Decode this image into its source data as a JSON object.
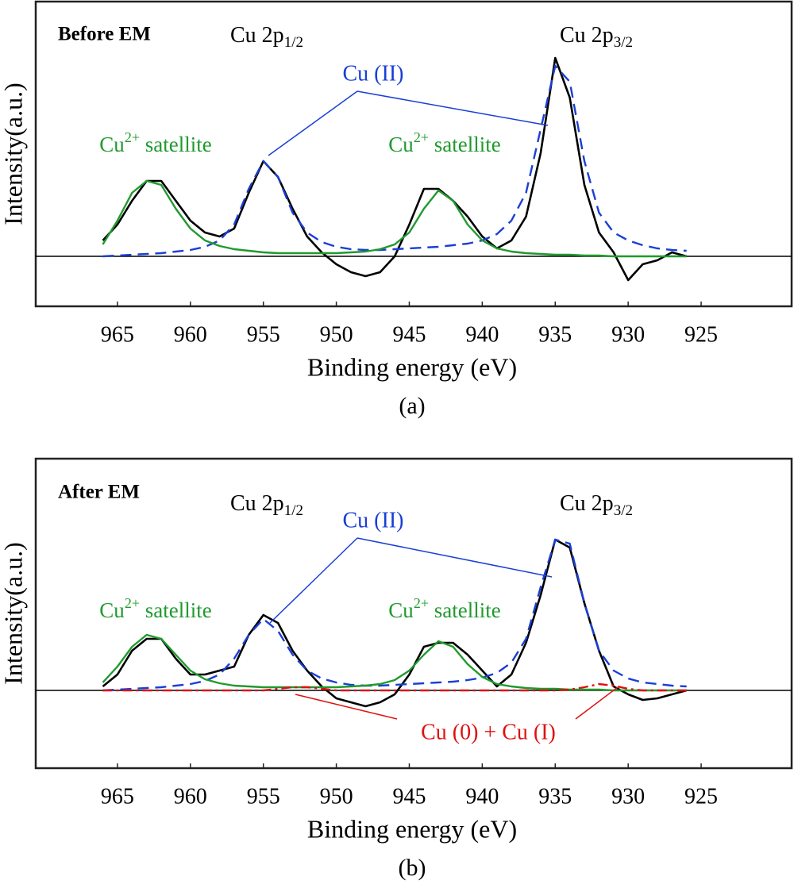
{
  "chart_data": [
    {
      "type": "line",
      "title": "Before EM",
      "caption": "(a)",
      "x_label": "Binding energy (eV)",
      "y_label": "Intensity(a.u.)",
      "x": [
        966,
        965,
        964,
        963,
        962,
        961,
        960,
        959,
        958,
        957,
        956,
        955,
        954,
        953,
        952,
        951,
        950,
        949,
        948,
        947,
        946,
        945,
        944,
        943,
        942,
        941,
        940,
        939,
        938,
        937,
        936,
        935,
        934,
        933,
        932,
        931,
        930,
        929,
        928,
        927,
        926
      ],
      "xlim": [
        970.6,
        918.8
      ],
      "xticks": [
        965,
        960,
        955,
        950,
        945,
        940,
        935,
        930,
        925
      ],
      "ylim": [
        -0.63,
        3.21
      ],
      "baseline": 0,
      "series": [
        {
          "color": "#000000",
          "dash": "solid",
          "values": [
            0.2,
            0.4,
            0.7,
            0.95,
            0.95,
            0.7,
            0.45,
            0.3,
            0.25,
            0.35,
            0.8,
            1.2,
            1.0,
            0.6,
            0.25,
            0.05,
            -0.1,
            -0.2,
            -0.25,
            -0.2,
            0.0,
            0.4,
            0.85,
            0.85,
            0.7,
            0.5,
            0.25,
            0.1,
            0.2,
            0.5,
            1.3,
            2.5,
            2.0,
            0.9,
            0.3,
            0.05,
            -0.3,
            -0.1,
            -0.05,
            0.05,
            0.0
          ]
        },
        {
          "color": "#1a3fd6",
          "dash": "dashed",
          "values": [
            0.0,
            0.01,
            0.02,
            0.03,
            0.04,
            0.06,
            0.08,
            0.12,
            0.2,
            0.4,
            0.85,
            1.2,
            1.0,
            0.55,
            0.3,
            0.18,
            0.12,
            0.09,
            0.08,
            0.08,
            0.09,
            0.1,
            0.11,
            0.12,
            0.14,
            0.16,
            0.2,
            0.28,
            0.45,
            0.8,
            1.6,
            2.4,
            2.2,
            1.2,
            0.55,
            0.3,
            0.2,
            0.14,
            0.1,
            0.08,
            0.07
          ]
        },
        {
          "color": "#1f9a2e",
          "dash": "solid",
          "values": [
            0.15,
            0.45,
            0.8,
            0.95,
            0.9,
            0.6,
            0.35,
            0.2,
            0.13,
            0.09,
            0.07,
            0.05,
            0.04,
            0.04,
            0.04,
            0.04,
            0.04,
            0.05,
            0.06,
            0.09,
            0.15,
            0.3,
            0.6,
            0.83,
            0.7,
            0.4,
            0.2,
            0.1,
            0.06,
            0.04,
            0.03,
            0.02,
            0.02,
            0.01,
            0.01,
            0.0,
            0.0,
            0.0,
            0.0,
            0.0,
            0.0
          ]
        }
      ],
      "peak_labels": [
        {
          "base": "Cu 2p",
          "sub": "1/2"
        },
        {
          "base": "Cu 2p",
          "sub": "3/2"
        }
      ],
      "cu2_label": "Cu (II)",
      "satellite_labels": [
        {
          "base": "Cu",
          "sup": "2+",
          "rest": " satellite"
        },
        {
          "base": "Cu",
          "sup": "2+",
          "rest": " satellite"
        }
      ]
    },
    {
      "type": "line",
      "title": "After EM",
      "caption": "(b)",
      "x_label": "Binding energy (eV)",
      "y_label": "Intensity(a.u.)",
      "x": [
        966,
        965,
        964,
        963,
        962,
        961,
        960,
        959,
        958,
        957,
        956,
        955,
        954,
        953,
        952,
        951,
        950,
        949,
        948,
        947,
        946,
        945,
        944,
        943,
        942,
        941,
        940,
        939,
        938,
        937,
        936,
        935,
        934,
        933,
        932,
        931,
        930,
        929,
        928,
        927,
        926
      ],
      "xlim": [
        970.6,
        918.8
      ],
      "xticks": [
        965,
        960,
        955,
        950,
        945,
        940,
        935,
        930,
        925
      ],
      "ylim": [
        -0.98,
        2.92
      ],
      "baseline": 0,
      "series": [
        {
          "color": "#000000",
          "dash": "solid",
          "values": [
            0.05,
            0.2,
            0.5,
            0.65,
            0.65,
            0.4,
            0.2,
            0.2,
            0.25,
            0.3,
            0.7,
            0.95,
            0.85,
            0.5,
            0.25,
            0.05,
            -0.1,
            -0.15,
            -0.2,
            -0.15,
            -0.05,
            0.2,
            0.55,
            0.6,
            0.6,
            0.45,
            0.25,
            0.05,
            0.2,
            0.6,
            1.2,
            1.9,
            1.8,
            1.1,
            0.5,
            0.05,
            -0.05,
            -0.12,
            -0.1,
            -0.05,
            0.0
          ]
        },
        {
          "color": "#1a3fd6",
          "dash": "dashed",
          "values": [
            0.0,
            0.01,
            0.02,
            0.03,
            0.04,
            0.06,
            0.08,
            0.12,
            0.2,
            0.4,
            0.7,
            0.9,
            0.75,
            0.45,
            0.25,
            0.15,
            0.1,
            0.07,
            0.06,
            0.06,
            0.07,
            0.08,
            0.09,
            0.1,
            0.11,
            0.13,
            0.16,
            0.22,
            0.35,
            0.65,
            1.3,
            1.9,
            1.85,
            1.1,
            0.5,
            0.25,
            0.15,
            0.1,
            0.08,
            0.06,
            0.05
          ]
        },
        {
          "color": "#1f9a2e",
          "dash": "solid",
          "values": [
            0.1,
            0.3,
            0.55,
            0.7,
            0.65,
            0.45,
            0.25,
            0.14,
            0.09,
            0.06,
            0.05,
            0.04,
            0.04,
            0.04,
            0.04,
            0.04,
            0.04,
            0.05,
            0.06,
            0.08,
            0.13,
            0.25,
            0.45,
            0.62,
            0.55,
            0.33,
            0.17,
            0.08,
            0.05,
            0.03,
            0.02,
            0.02,
            0.01,
            0.01,
            0.01,
            0.0,
            0.0,
            0.0,
            0.0,
            0.0,
            0.0
          ]
        },
        {
          "color": "#e01010",
          "dash": "dashdot",
          "values": [
            0,
            0,
            0,
            0,
            0,
            0,
            0,
            0,
            0,
            0,
            0,
            0,
            0.02,
            0.04,
            0.04,
            0.02,
            0,
            0,
            0,
            0,
            0,
            0,
            0,
            0,
            0,
            0,
            0,
            0,
            0,
            0,
            0,
            0,
            0.01,
            0.04,
            0.08,
            0.06,
            0.02,
            0,
            0,
            0,
            0
          ]
        }
      ],
      "peak_labels": [
        {
          "base": "Cu 2p",
          "sub": "1/2"
        },
        {
          "base": "Cu 2p",
          "sub": "3/2"
        }
      ],
      "cu2_label": "Cu (II)",
      "satellite_labels": [
        {
          "base": "Cu",
          "sup": "2+",
          "rest": " satellite"
        },
        {
          "base": "Cu",
          "sup": "2+",
          "rest": " satellite"
        }
      ],
      "red_label": "Cu (0) + Cu (I)"
    }
  ]
}
